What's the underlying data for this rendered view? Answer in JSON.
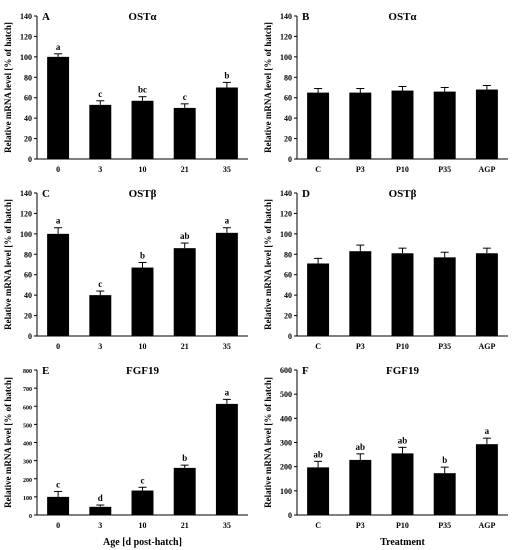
{
  "chart_data": [
    {
      "type": "bar",
      "letter": "A",
      "title": "OSTα",
      "ylabel": "Relative mRNA level [% of hatch]",
      "xlabel": "",
      "categories": [
        "0",
        "3",
        "10",
        "21",
        "35"
      ],
      "values": [
        100,
        53,
        57,
        50,
        70
      ],
      "errors": [
        3,
        4,
        4,
        4,
        5
      ],
      "significance": [
        "a",
        "c",
        "bc",
        "c",
        "b"
      ],
      "ylim": [
        0,
        140
      ],
      "yticks": [
        "0",
        "20",
        "40",
        "60",
        "80",
        "100",
        "120",
        "140"
      ],
      "bar_color": "#000000",
      "grid": false
    },
    {
      "type": "bar",
      "letter": "B",
      "title": "OSTα",
      "ylabel": "Relative mRNA level [% of hatch]",
      "xlabel": "",
      "categories": [
        "C",
        "P3",
        "P10",
        "P35",
        "AGP"
      ],
      "values": [
        65,
        65,
        67,
        66,
        68
      ],
      "errors": [
        4,
        4,
        4,
        4,
        4
      ],
      "significance": [
        "",
        "",
        "",
        "",
        ""
      ],
      "ylim": [
        0,
        140
      ],
      "yticks": [
        "0",
        "20",
        "40",
        "60",
        "80",
        "100",
        "120",
        "140"
      ],
      "bar_color": "#000000",
      "grid": false
    },
    {
      "type": "bar",
      "letter": "C",
      "title": "OSTβ",
      "ylabel": "Relative mRNA level [% of hatch]",
      "xlabel": "",
      "categories": [
        "0",
        "3",
        "10",
        "21",
        "35"
      ],
      "values": [
        100,
        40,
        67,
        86,
        101
      ],
      "errors": [
        6,
        4,
        5,
        5,
        5
      ],
      "significance": [
        "a",
        "c",
        "b",
        "ab",
        "a"
      ],
      "ylim": [
        0,
        140
      ],
      "yticks": [
        "0",
        "20",
        "40",
        "60",
        "80",
        "100",
        "120",
        "140"
      ],
      "bar_color": "#000000",
      "grid": false
    },
    {
      "type": "bar",
      "letter": "D",
      "title": "OSTβ",
      "ylabel": "Relative mRNA level [% of hatch]",
      "xlabel": "",
      "categories": [
        "C",
        "P3",
        "P10",
        "P35",
        "AGP"
      ],
      "values": [
        71,
        83,
        81,
        77,
        81
      ],
      "errors": [
        5,
        6,
        5,
        5,
        5
      ],
      "significance": [
        "",
        "",
        "",
        "",
        ""
      ],
      "ylim": [
        0,
        140
      ],
      "yticks": [
        "0",
        "20",
        "40",
        "60",
        "80",
        "100",
        "120",
        "140"
      ],
      "bar_color": "#000000",
      "grid": false
    },
    {
      "type": "bar",
      "letter": "E",
      "title": "FGF19",
      "ylabel": "Relative mRNA level [% of hatch]",
      "xlabel": "Age [d post-hatch]",
      "categories": [
        "0",
        "3",
        "10",
        "21",
        "35"
      ],
      "values": [
        100,
        45,
        135,
        260,
        613
      ],
      "errors": [
        30,
        10,
        18,
        15,
        25
      ],
      "significance": [
        "c",
        "d",
        "c",
        "b",
        "a"
      ],
      "ylim": [
        0,
        800
      ],
      "yticks": [
        "0",
        "100",
        "200",
        "300",
        "400",
        "500",
        "600",
        "700",
        "800"
      ],
      "bar_color": "#000000",
      "grid": false
    },
    {
      "type": "bar",
      "letter": "F",
      "title": "FGF19",
      "ylabel": "Relative mRNA level [% of hatch]",
      "xlabel": "Treatment",
      "categories": [
        "C",
        "P3",
        "P10",
        "P35",
        "AGP"
      ],
      "values": [
        197,
        228,
        255,
        173,
        293
      ],
      "errors": [
        25,
        25,
        25,
        25,
        25
      ],
      "significance": [
        "ab",
        "ab",
        "ab",
        "b",
        "a"
      ],
      "ylim": [
        0,
        600
      ],
      "yticks": [
        "0",
        "100",
        "200",
        "300",
        "400",
        "500",
        "600"
      ],
      "bar_color": "#000000",
      "grid": false
    }
  ]
}
